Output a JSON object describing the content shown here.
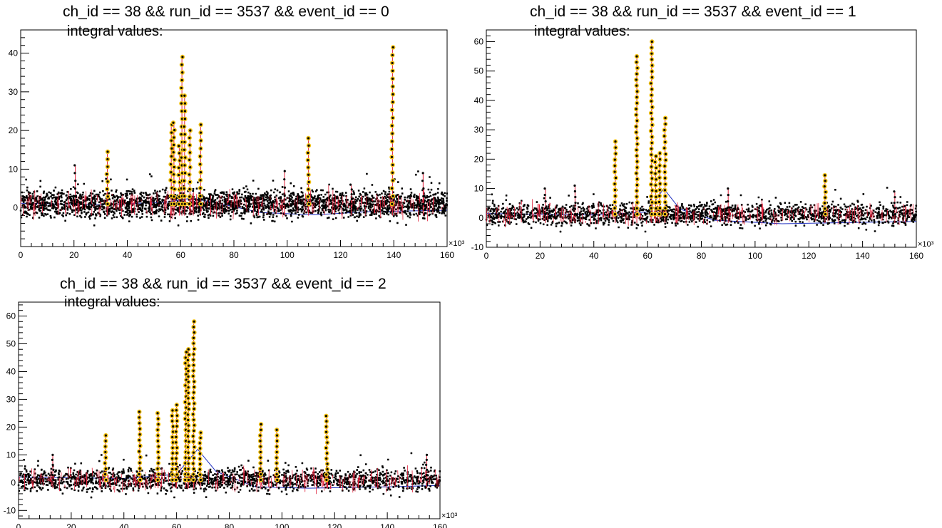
{
  "chart_data": [
    {
      "type": "scatter",
      "title": "ch_id == 38 && run_id == 3537 && event_id == 0",
      "subtitle": "integral values:",
      "x_multiplier_label": "×10³",
      "xlim": [
        0,
        160
      ],
      "ylim": [
        -10,
        46
      ],
      "xticks": [
        0,
        20,
        40,
        60,
        80,
        100,
        120,
        140,
        160
      ],
      "yticks": [
        0,
        10,
        20,
        30,
        40
      ],
      "noise_band": [
        -2.5,
        4.5
      ],
      "baseline": [
        [
          0,
          1.2
        ],
        [
          30,
          0.8
        ],
        [
          55,
          1.5
        ],
        [
          64,
          2.5
        ],
        [
          72,
          1.5
        ],
        [
          90,
          -1.2
        ],
        [
          110,
          -1.8
        ],
        [
          130,
          -1.0
        ],
        [
          160,
          -0.6
        ]
      ],
      "spikes": [
        {
          "x": 20.5,
          "top": 11
        },
        {
          "x": 32.5,
          "top": 14.5
        },
        {
          "x": 56.5,
          "top": 21.5
        },
        {
          "x": 57.5,
          "top": 22
        },
        {
          "x": 59.5,
          "top": 16
        },
        {
          "x": 60.5,
          "top": 39
        },
        {
          "x": 61.5,
          "top": 29
        },
        {
          "x": 63.5,
          "top": 20
        },
        {
          "x": 67.5,
          "top": 21.5
        },
        {
          "x": 99,
          "top": 9.5
        },
        {
          "x": 108,
          "top": 18
        },
        {
          "x": 124,
          "top": 6
        },
        {
          "x": 139.5,
          "top": 41.5
        },
        {
          "x": 151,
          "top": 9
        }
      ]
    },
    {
      "type": "scatter",
      "title": "ch_id == 38 && run_id == 3537 && event_id == 1",
      "subtitle": "integral values:",
      "x_multiplier_label": "×10³",
      "xlim": [
        0,
        160
      ],
      "ylim": [
        -10,
        64
      ],
      "xticks": [
        0,
        20,
        40,
        60,
        80,
        100,
        120,
        140,
        160
      ],
      "yticks": [
        -10,
        0,
        10,
        20,
        30,
        40,
        50,
        60
      ],
      "noise_band": [
        -2.5,
        5
      ],
      "baseline": [
        [
          0,
          1.5
        ],
        [
          40,
          1.0
        ],
        [
          60,
          2.0
        ],
        [
          66,
          10
        ],
        [
          72,
          3
        ],
        [
          85,
          -0.8
        ],
        [
          110,
          -2
        ],
        [
          140,
          -1.5
        ],
        [
          160,
          -1.2
        ]
      ],
      "spikes": [
        {
          "x": 22,
          "top": 10
        },
        {
          "x": 33,
          "top": 11
        },
        {
          "x": 48,
          "top": 26
        },
        {
          "x": 56,
          "top": 55
        },
        {
          "x": 61.5,
          "top": 60
        },
        {
          "x": 63,
          "top": 21
        },
        {
          "x": 64.5,
          "top": 22
        },
        {
          "x": 66.5,
          "top": 34
        },
        {
          "x": 90,
          "top": 10
        },
        {
          "x": 126,
          "top": 14.5
        },
        {
          "x": 152,
          "top": 9
        }
      ]
    },
    {
      "type": "scatter",
      "title": "ch_id == 38 && run_id == 3537 && event_id == 2",
      "subtitle": "integral values:",
      "x_multiplier_label": "×10³",
      "xlim": [
        0,
        160
      ],
      "ylim": [
        -13,
        65
      ],
      "xticks": [
        0,
        20,
        40,
        60,
        80,
        100,
        120,
        140,
        160
      ],
      "yticks": [
        -10,
        0,
        10,
        20,
        30,
        40,
        50,
        60
      ],
      "noise_band": [
        -3,
        5
      ],
      "baseline": [
        [
          0,
          2
        ],
        [
          40,
          1.5
        ],
        [
          60,
          3
        ],
        [
          68,
          12
        ],
        [
          75,
          4
        ],
        [
          90,
          -1.5
        ],
        [
          110,
          -2
        ],
        [
          140,
          -1.5
        ],
        [
          160,
          -1
        ]
      ],
      "spikes": [
        {
          "x": 13,
          "top": 10
        },
        {
          "x": 33,
          "top": 17
        },
        {
          "x": 46,
          "top": 25.5
        },
        {
          "x": 53,
          "top": 25
        },
        {
          "x": 58.5,
          "top": 26
        },
        {
          "x": 60,
          "top": 28
        },
        {
          "x": 63.5,
          "top": 47
        },
        {
          "x": 64.5,
          "top": 48
        },
        {
          "x": 66.5,
          "top": 58
        },
        {
          "x": 69,
          "top": 18
        },
        {
          "x": 92,
          "top": 21
        },
        {
          "x": 98,
          "top": 19
        },
        {
          "x": 117,
          "top": 24
        },
        {
          "x": 155,
          "top": 10
        }
      ]
    }
  ]
}
